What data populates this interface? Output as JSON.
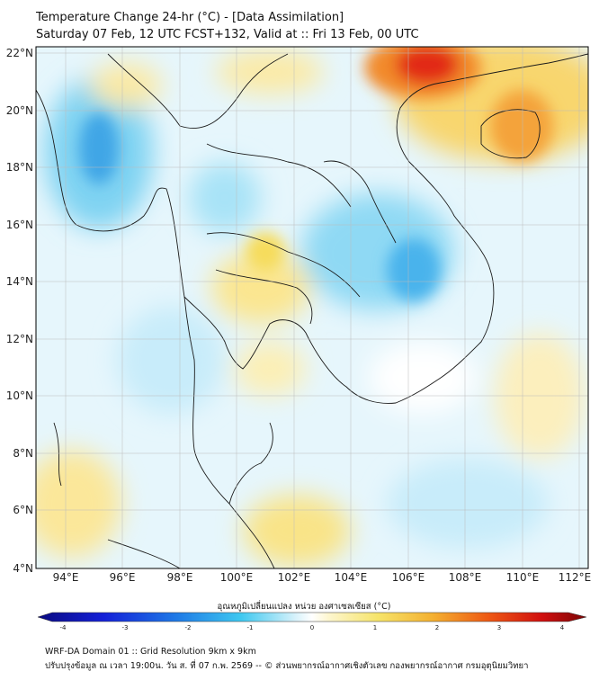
{
  "title_line1": "Temperature Change 24-hr (°C) - [Data Assimilation]",
  "title_line2": "Saturday 07 Feb, 12 UTC FCST+132, Valid at :: Fri 13 Feb, 00 UTC",
  "lat_labels": [
    "22°N",
    "20°N",
    "18°N",
    "16°N",
    "14°N",
    "12°N",
    "10°N",
    "8°N",
    "6°N",
    "4°N"
  ],
  "lon_labels": [
    "94°E",
    "96°E",
    "98°E",
    "100°E",
    "102°E",
    "104°E",
    "106°E",
    "108°E",
    "110°E",
    "112°E"
  ],
  "colorbar": {
    "title": "อุณหภูมิเปลี่ยนแปลง หน่วย องศาเซลเซียส (°C)",
    "ticks": [
      "-4",
      "-3",
      "-2",
      "-1",
      "0",
      "1",
      "2",
      "3",
      "4"
    ],
    "min": -4,
    "max": 4
  },
  "footer_line1": "WRF-DA Domain 01 :: Grid Resolution 9km x 9km",
  "footer_line2": "ปรับปรุงข้อมูล ณ เวลา 19:00น. วัน ส. ที่ 07 ก.พ. 2569 -- © ส่วนพยากรณ์อากาศเชิงตัวเลข กองพยากรณ์อากาศ กรมอุตุนิยมวิทยา"
}
